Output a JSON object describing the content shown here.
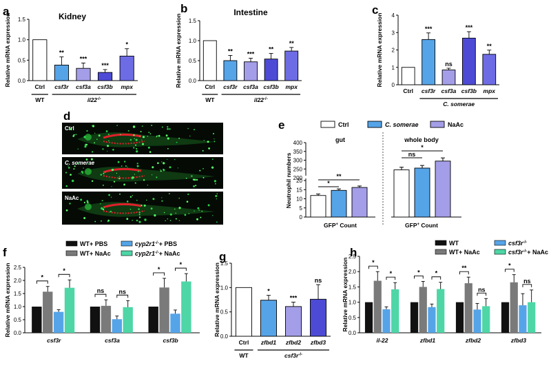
{
  "colors": {
    "white": "#ffffff",
    "light_blue": "#56a4e8",
    "lavender": "#a49ee8",
    "blue": "#4d4bd6",
    "medium_blue": "#6e6ce4",
    "black": "#111111",
    "gray": "#7a7a7a",
    "green": "#4ed6a6"
  },
  "chart_data": [
    {
      "id": "a",
      "letter": "a",
      "type": "bar",
      "title": "Kidney",
      "ylabel": "Relative mRNA expression",
      "ylim": [
        0,
        1.5
      ],
      "yticks": [
        "0.0",
        "0.5",
        "1.0",
        "1.5"
      ],
      "categories": [
        "Ctrl",
        "csf3r",
        "csf3a",
        "csf3b",
        "mpx"
      ],
      "values": [
        1.0,
        0.38,
        0.3,
        0.2,
        0.6
      ],
      "errors": [
        0,
        0.2,
        0.13,
        0.07,
        0.18
      ],
      "significance": [
        "",
        "**",
        "***",
        "***",
        "*"
      ],
      "group_labels": [
        "WT",
        "il22-/-"
      ],
      "bar_colors": [
        "white",
        "light_blue",
        "lavender",
        "blue",
        "medium_blue"
      ]
    },
    {
      "id": "b",
      "letter": "b",
      "type": "bar",
      "title": "Intestine",
      "ylabel": "Relative mRNA expression",
      "ylim": [
        0,
        1.5
      ],
      "yticks": [
        "0.0",
        "0.5",
        "1.0",
        "1.5"
      ],
      "categories": [
        "Ctrl",
        "csf3r",
        "csf3a",
        "csf3b",
        "mpx"
      ],
      "values": [
        1.0,
        0.5,
        0.47,
        0.54,
        0.74
      ],
      "errors": [
        0,
        0.13,
        0.09,
        0.14,
        0.09
      ],
      "significance": [
        "",
        "**",
        "***",
        "**",
        "**"
      ],
      "group_labels": [
        "WT",
        "il22-/-"
      ],
      "bar_colors": [
        "white",
        "light_blue",
        "lavender",
        "blue",
        "medium_blue"
      ]
    },
    {
      "id": "c",
      "letter": "c",
      "type": "bar",
      "title": "",
      "ylabel": "Relative mRNA expression",
      "ylim": [
        0,
        4
      ],
      "yticks": [
        "0",
        "1",
        "2",
        "3",
        "4"
      ],
      "categories": [
        "Ctrl",
        "csf3r",
        "csf3a",
        "csf3b",
        "mpx"
      ],
      "values": [
        1.0,
        2.6,
        0.85,
        2.68,
        1.75
      ],
      "errors": [
        0,
        0.38,
        0.1,
        0.37,
        0.24
      ],
      "significance": [
        "",
        "***",
        "ns",
        "***",
        "**"
      ],
      "group_labels": [
        "",
        "C. somerae"
      ],
      "bar_colors": [
        "white",
        "light_blue",
        "lavender",
        "blue",
        "medium_blue"
      ]
    },
    {
      "id": "e",
      "letter": "e",
      "type": "bar",
      "ylabel": "Neutrophil numbers",
      "yticks": [
        "0",
        "5",
        "10",
        "15",
        "20",
        "200",
        "250",
        "300",
        "350",
        "400"
      ],
      "legend": [
        "Ctrl",
        "C. somerae",
        "NaAc"
      ],
      "panels": [
        {
          "title": "gut",
          "xlabel": "GFP+ Count",
          "values": [
            11.8,
            14.6,
            16.2
          ],
          "errors": [
            0.8,
            0.8,
            0.8
          ],
          "comparisons": [
            "*",
            "**"
          ]
        },
        {
          "title": "whole body",
          "xlabel": "GFP+ Count",
          "values": [
            245,
            255,
            295
          ],
          "errors": [
            15,
            15,
            18
          ],
          "comparisons": [
            "ns",
            "*"
          ]
        }
      ]
    },
    {
      "id": "f",
      "letter": "f",
      "type": "bar",
      "ylabel": "Relative mRNA expression",
      "ylim": [
        0,
        2.5
      ],
      "yticks": [
        "0.0",
        "0.5",
        "1.0",
        "1.5",
        "2.0",
        "2.5"
      ],
      "categories": [
        "csf3r",
        "csf3a",
        "csf3b"
      ],
      "legend": [
        "WT+ PBS",
        "WT+ NaAc",
        "cyp2r1-/-+ PBS",
        "cyp2r1-/-+ NaAc"
      ],
      "series": [
        {
          "name": "WT+ PBS",
          "values": [
            1.0,
            1.0,
            1.0
          ],
          "errors": [
            0,
            0,
            0
          ]
        },
        {
          "name": "WT+ NaAc",
          "values": [
            1.57,
            1.03,
            1.73
          ],
          "errors": [
            0.2,
            0.23,
            0.35
          ]
        },
        {
          "name": "cyp2r1-/-+ PBS",
          "values": [
            0.8,
            0.52,
            0.73
          ],
          "errors": [
            0.08,
            0.12,
            0.14
          ]
        },
        {
          "name": "cyp2r1-/-+ NaAc",
          "values": [
            1.72,
            0.98,
            1.96
          ],
          "errors": [
            0.3,
            0.25,
            0.3
          ]
        }
      ],
      "significance": [
        [
          "*",
          "*"
        ],
        [
          "ns",
          "ns"
        ],
        [
          "*",
          "*"
        ]
      ]
    },
    {
      "id": "g",
      "letter": "g",
      "type": "bar",
      "title": "",
      "ylabel": "Relative mRNA expression",
      "ylim": [
        0,
        1.5
      ],
      "yticks": [
        "0.0",
        "0.5",
        "1.0",
        "1.5"
      ],
      "categories": [
        "Ctrl",
        "zfbd1",
        "zfbd2",
        "zfbd3"
      ],
      "values": [
        1.0,
        0.74,
        0.61,
        0.76
      ],
      "errors": [
        0,
        0.1,
        0.09,
        0.3
      ],
      "significance": [
        "",
        "*",
        "***",
        "ns"
      ],
      "group_labels": [
        "WT",
        "csf3r-/-"
      ],
      "bar_colors": [
        "white",
        "light_blue",
        "lavender",
        "blue"
      ]
    },
    {
      "id": "h",
      "letter": "h",
      "type": "bar",
      "ylabel": "Relative mRNA expression",
      "ylim": [
        0,
        2.5
      ],
      "yticks": [
        "0.0",
        "0.5",
        "1.0",
        "1.5",
        "2.0",
        "2.5"
      ],
      "categories": [
        "il-22",
        "zfbd1",
        "zfbd2",
        "zfbd3"
      ],
      "legend": [
        "WT",
        "WT+ NaAc",
        "csf3r-/-",
        "csf3r-/-+ NaAc"
      ],
      "series": [
        {
          "name": "WT",
          "values": [
            1.0,
            1.0,
            1.0,
            1.0
          ],
          "errors": [
            0,
            0,
            0,
            0
          ]
        },
        {
          "name": "WT+ NaAc",
          "values": [
            1.7,
            1.5,
            1.62,
            1.65
          ],
          "errors": [
            0.3,
            0.18,
            0.2,
            0.25
          ]
        },
        {
          "name": "csf3r-/-",
          "values": [
            0.77,
            0.84,
            0.76,
            0.9
          ],
          "errors": [
            0.08,
            0.1,
            0.2,
            0.38
          ]
        },
        {
          "name": "csf3r-/-+ NaAc",
          "values": [
            1.42,
            1.43,
            0.87,
            1.0
          ],
          "errors": [
            0.22,
            0.22,
            0.25,
            0.4
          ]
        }
      ],
      "significance": [
        [
          "*",
          "*"
        ],
        [
          "*",
          "*"
        ],
        [
          "**",
          "ns"
        ],
        [
          "*",
          "ns"
        ]
      ]
    }
  ],
  "panel_d": {
    "letter": "d",
    "images": [
      {
        "label": "Ctrl"
      },
      {
        "label": "C. somerae"
      },
      {
        "label": "NaAc"
      }
    ]
  }
}
